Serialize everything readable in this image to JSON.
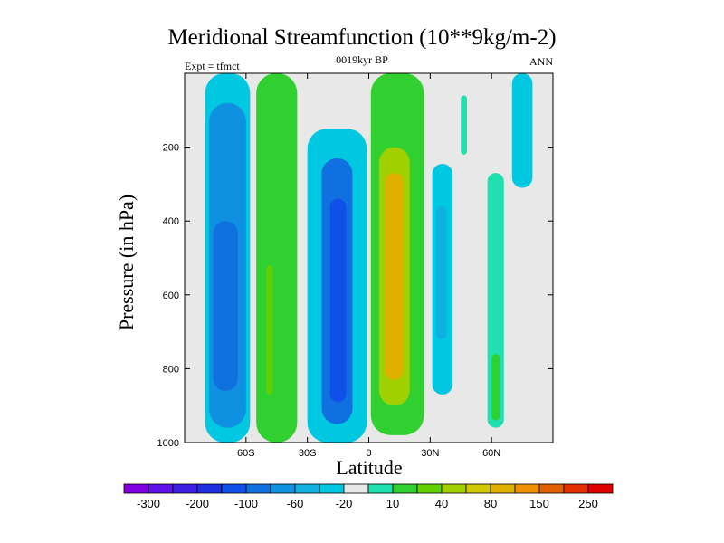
{
  "chart_data": {
    "type": "contour",
    "title": "Meridional Streamfunction (10**9kg/m-2)",
    "subtitle": "0019kyr BP",
    "left_label": "Expt = tfmct",
    "right_label": "ANN",
    "xlabel": "Latitude",
    "ylabel": "Pressure (in hPa)",
    "xlim": [
      -90,
      90
    ],
    "ylim": [
      1000,
      0
    ],
    "x_ticks": [
      {
        "value": -60,
        "label": "60S"
      },
      {
        "value": -30,
        "label": "30S"
      },
      {
        "value": 0,
        "label": "0"
      },
      {
        "value": 30,
        "label": "30N"
      },
      {
        "value": 60,
        "label": "60N"
      }
    ],
    "y_ticks": [
      {
        "value": 200,
        "label": "200"
      },
      {
        "value": 400,
        "label": "400"
      },
      {
        "value": 600,
        "label": "600"
      },
      {
        "value": 800,
        "label": "800"
      },
      {
        "value": 1000,
        "label": "1000"
      }
    ],
    "background_color": "#e8e8e8",
    "colorbar": {
      "colors": [
        "#8000e0",
        "#6010e8",
        "#4020e0",
        "#2030e0",
        "#1050e8",
        "#1070e0",
        "#1090e0",
        "#10b0e0",
        "#00c8e0",
        "#e8e8e8",
        "#20e0b0",
        "#30d030",
        "#60d000",
        "#a0d000",
        "#d0c800",
        "#e0b000",
        "#f09000",
        "#e06000",
        "#e03000",
        "#e00000"
      ],
      "labels": [
        {
          "after_index": 1,
          "text": "-300"
        },
        {
          "after_index": 3,
          "text": "-200"
        },
        {
          "after_index": 5,
          "text": "-100"
        },
        {
          "after_index": 7,
          "text": "-60"
        },
        {
          "after_index": 9,
          "text": "-20"
        },
        {
          "after_index": 11,
          "text": "10"
        },
        {
          "after_index": 13,
          "text": "40"
        },
        {
          "after_index": 15,
          "text": "80"
        },
        {
          "after_index": 17,
          "text": "150"
        },
        {
          "after_index": 19,
          "text": "250"
        }
      ]
    },
    "contour_regions": [
      {
        "name": "southern-polar-cell",
        "value": -40,
        "color": "#00c8e0",
        "lat": [
          -80,
          -58
        ],
        "p": [
          0,
          1000
        ]
      },
      {
        "name": "southern-polar-cell-core",
        "value": -60,
        "color": "#1090e0",
        "lat": [
          -78,
          -60
        ],
        "p": [
          80,
          960
        ]
      },
      {
        "name": "southern-polar-cell-inner",
        "value": -100,
        "color": "#1070e0",
        "lat": [
          -76,
          -64
        ],
        "p": [
          400,
          860
        ]
      },
      {
        "name": "southern-ferrel-cell",
        "value": 40,
        "color": "#30d030",
        "lat": [
          -55,
          -35
        ],
        "p": [
          0,
          1000
        ]
      },
      {
        "name": "southern-ferrel-cell-core",
        "value": 80,
        "color": "#60d000",
        "lat": [
          -50,
          -47
        ],
        "p": [
          520,
          870
        ]
      },
      {
        "name": "southern-hadley-cell",
        "value": -60,
        "color": "#00c8e0",
        "lat": [
          -30,
          -1
        ],
        "p": [
          150,
          1000
        ]
      },
      {
        "name": "southern-hadley-cell-mid",
        "value": -100,
        "color": "#1070e0",
        "lat": [
          -23,
          -8
        ],
        "p": [
          230,
          950
        ]
      },
      {
        "name": "southern-hadley-cell-core",
        "value": -200,
        "color": "#1050e8",
        "lat": [
          -19,
          -11
        ],
        "p": [
          340,
          890
        ]
      },
      {
        "name": "northern-hadley-cell",
        "value": 80,
        "color": "#30d030",
        "lat": [
          1,
          27
        ],
        "p": [
          0,
          980
        ]
      },
      {
        "name": "northern-hadley-cell-mid",
        "value": 150,
        "color": "#a0d000",
        "lat": [
          5,
          20
        ],
        "p": [
          200,
          900
        ]
      },
      {
        "name": "northern-hadley-cell-core",
        "value": 250,
        "color": "#e0b000",
        "lat": [
          8,
          17
        ],
        "p": [
          270,
          830
        ]
      },
      {
        "name": "northern-ferrel-cell",
        "value": -20,
        "color": "#00c8e0",
        "lat": [
          31,
          41
        ],
        "p": [
          245,
          870
        ]
      },
      {
        "name": "northern-ferrel-cell-core",
        "value": -40,
        "color": "#10b0e0",
        "lat": [
          33,
          38
        ],
        "p": [
          360,
          720
        ]
      },
      {
        "name": "northern-upper-positive",
        "value": 10,
        "color": "#20e0b0",
        "lat": [
          45,
          48
        ],
        "p": [
          60,
          220
        ]
      },
      {
        "name": "northern-polar-cell",
        "value": 10,
        "color": "#20e0b0",
        "lat": [
          58,
          66
        ],
        "p": [
          270,
          960
        ]
      },
      {
        "name": "northern-polar-cell-core",
        "value": 40,
        "color": "#30d030",
        "lat": [
          60,
          64
        ],
        "p": [
          760,
          940
        ]
      },
      {
        "name": "northern-stratospheric-negative",
        "value": -20,
        "color": "#00c8e0",
        "lat": [
          70,
          80
        ],
        "p": [
          0,
          310
        ]
      }
    ]
  }
}
